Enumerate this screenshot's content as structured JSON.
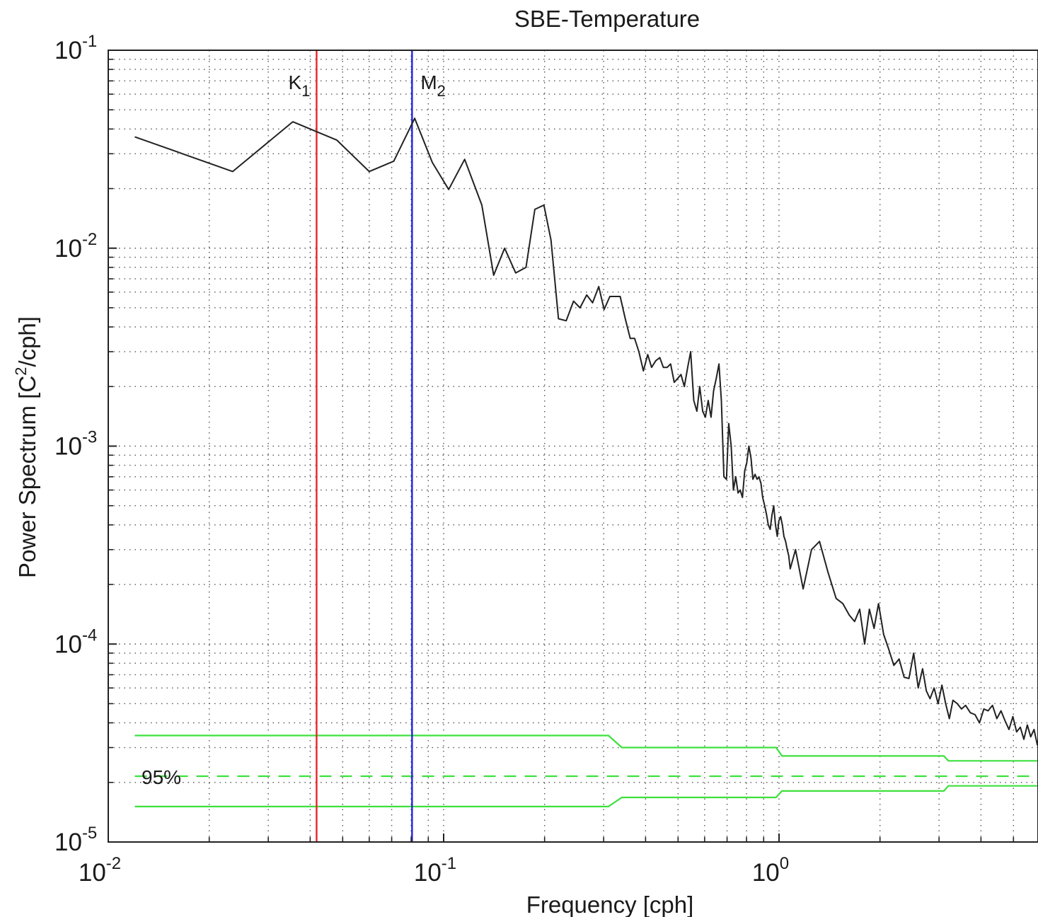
{
  "chart_data": {
    "type": "line",
    "title": "SBE-Temperature",
    "xlabel": "Frequency [cph]",
    "ylabel": {
      "base": "Power Spectrum [C",
      "sup": "2",
      "tail": "/cph]"
    },
    "x_scale": "log",
    "y_scale": "log",
    "xlim": [
      0.01,
      6.0
    ],
    "ylim": [
      1e-05,
      0.1
    ],
    "grid": true,
    "x_ticks": [
      {
        "value": 0.01,
        "base": "10",
        "exp": "-2"
      },
      {
        "value": 0.1,
        "base": "10",
        "exp": "-1"
      },
      {
        "value": 1,
        "base": "10",
        "exp": "0"
      }
    ],
    "y_ticks": [
      {
        "value": 0.1,
        "base": "10",
        "exp": "-1"
      },
      {
        "value": 0.01,
        "base": "10",
        "exp": "-2"
      },
      {
        "value": 0.001,
        "base": "10",
        "exp": "-3"
      },
      {
        "value": 0.0001,
        "base": "10",
        "exp": "-4"
      },
      {
        "value": 1e-05,
        "base": "10",
        "exp": "-5"
      }
    ],
    "reference_lines": [
      {
        "label": "K",
        "sub": "1",
        "x": 0.0418,
        "color": "#e8242a"
      },
      {
        "label": "M",
        "sub": "2",
        "x": 0.0805,
        "color": "#2323e0"
      }
    ],
    "confidence": {
      "label": "95%",
      "color": "#3ee03e",
      "center": 2.15e-05,
      "upper": {
        "x": [
          0.012,
          0.31,
          0.34,
          0.98,
          1.02,
          3.1,
          3.2,
          6.0
        ],
        "y": [
          3.45e-05,
          3.45e-05,
          3e-05,
          3e-05,
          2.72e-05,
          2.72e-05,
          2.57e-05,
          2.57e-05
        ]
      },
      "lower": {
        "x": [
          0.012,
          0.31,
          0.34,
          0.98,
          1.02,
          3.1,
          3.2,
          6.0
        ],
        "y": [
          1.51e-05,
          1.51e-05,
          1.68e-05,
          1.68e-05,
          1.81e-05,
          1.81e-05,
          1.92e-05,
          1.92e-05
        ]
      }
    },
    "series": [
      {
        "color": "#222222",
        "x": [
          0.012,
          0.0235,
          0.0355,
          0.048,
          0.06,
          0.071,
          0.082,
          0.0925,
          0.1035,
          0.1155,
          0.13,
          0.141,
          0.152,
          0.164,
          0.176,
          0.187,
          0.199,
          0.209,
          0.22,
          0.232,
          0.244,
          0.255,
          0.267,
          0.278,
          0.29,
          0.301,
          0.313,
          0.325,
          0.336,
          0.348,
          0.36,
          0.371,
          0.382,
          0.394,
          0.406,
          0.417,
          0.429,
          0.441,
          0.452,
          0.464,
          0.475,
          0.487,
          0.499,
          0.51,
          0.522,
          0.534,
          0.545,
          0.557,
          0.569,
          0.58,
          0.592,
          0.603,
          0.615,
          0.627,
          0.638,
          0.65,
          0.662,
          0.673,
          0.685,
          0.697,
          0.708,
          0.72,
          0.731,
          0.743,
          0.755,
          0.766,
          0.778,
          0.79,
          0.801,
          0.813,
          0.825,
          0.836,
          0.848,
          0.86,
          0.871,
          0.883,
          0.894,
          0.906,
          0.918,
          0.929,
          0.941,
          0.953,
          0.964,
          0.976,
          0.988,
          0.999,
          1.011,
          1.023,
          1.034,
          1.046,
          1.058,
          1.069,
          1.08,
          1.12,
          1.18,
          1.25,
          1.32,
          1.4,
          1.48,
          1.55,
          1.62,
          1.68,
          1.74,
          1.8,
          1.86,
          1.92,
          1.98,
          2.05,
          2.12,
          2.2,
          2.28,
          2.36,
          2.44,
          2.52,
          2.6,
          2.68,
          2.75,
          2.82,
          2.9,
          2.98,
          3.06,
          3.14,
          3.22,
          3.3,
          3.4,
          3.5,
          3.6,
          3.72,
          3.84,
          3.96,
          4.08,
          4.2,
          4.33,
          4.46,
          4.59,
          4.72,
          4.85,
          4.98,
          5.11,
          5.24,
          5.37,
          5.5,
          5.63,
          5.76,
          5.89,
          6.0
        ],
        "y": [
          0.0365,
          0.0244,
          0.0435,
          0.0352,
          0.0244,
          0.0275,
          0.0453,
          0.0271,
          0.0198,
          0.0281,
          0.0165,
          0.0073,
          0.01,
          0.0075,
          0.008,
          0.0157,
          0.0165,
          0.011,
          0.0044,
          0.0043,
          0.0054,
          0.005,
          0.0058,
          0.0053,
          0.0064,
          0.0049,
          0.0057,
          0.0057,
          0.0057,
          0.0044,
          0.0035,
          0.0035,
          0.003,
          0.0024,
          0.0029,
          0.0025,
          0.0027,
          0.0028,
          0.0025,
          0.0025,
          0.0026,
          0.0021,
          0.0022,
          0.0023,
          0.002,
          0.0025,
          0.003,
          0.0017,
          0.0015,
          0.002,
          0.0015,
          0.0014,
          0.0017,
          0.0014,
          0.0019,
          0.0022,
          0.0026,
          0.0017,
          0.0007,
          0.00068,
          0.0013,
          0.001,
          0.0006,
          0.0007,
          0.00058,
          0.0006,
          0.00055,
          0.00075,
          0.00082,
          0.001,
          0.00087,
          0.00068,
          0.00072,
          0.00068,
          0.0007,
          0.00065,
          0.00055,
          0.0005,
          0.00045,
          0.0004,
          0.00038,
          0.00045,
          0.0005,
          0.0004,
          0.00035,
          0.00042,
          0.00044,
          0.0004,
          0.00035,
          0.00033,
          0.0003,
          0.00028,
          0.00024,
          0.0003,
          0.00019,
          0.0003,
          0.00033,
          0.00023,
          0.00017,
          0.00016,
          0.00014,
          0.00013,
          0.00015,
          0.0001,
          0.00015,
          0.00012,
          0.00016,
          0.000112,
          9.5e-05,
          7.8e-05,
          8.4e-05,
          6.8e-05,
          6.7e-05,
          9e-05,
          6e-05,
          7.5e-05,
          5.8e-05,
          5.3e-05,
          6e-05,
          5e-05,
          6.2e-05,
          5e-05,
          4.2e-05,
          5.2e-05,
          5e-05,
          4.7e-05,
          4.9e-05,
          4.5e-05,
          4.4e-05,
          4e-05,
          4.7e-05,
          4.6e-05,
          4.9e-05,
          4.2e-05,
          4.6e-05,
          4.1e-05,
          3.7e-05,
          4.3e-05,
          3.6e-05,
          3.8e-05,
          3.3e-05,
          3.9e-05,
          3.4e-05,
          3.7e-05,
          3.1e-05,
          3.6e-05
        ]
      }
    ]
  }
}
